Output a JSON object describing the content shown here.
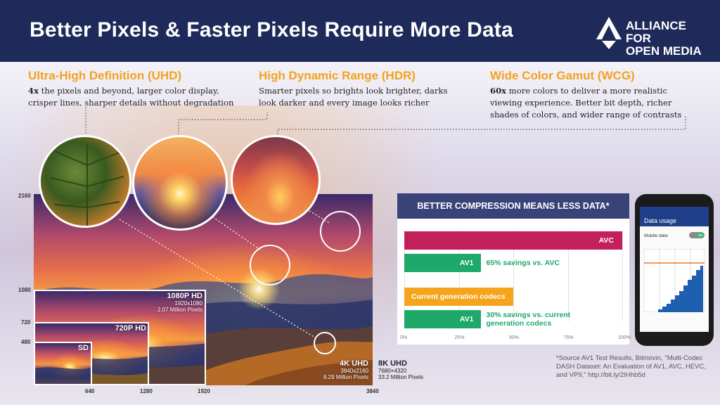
{
  "header": {
    "title": "Better Pixels & Faster Pixels Require More Data",
    "logo_line1": "ALLIANCE FOR",
    "logo_line2": "OPEN MEDIA"
  },
  "features": [
    {
      "title": "Ultra-High Definition (UHD)",
      "desc_bold": "4x",
      "desc": " the pixels and beyond, larger color display, crisper lines, sharper details without degradation"
    },
    {
      "title": "High Dynamic Range (HDR)",
      "desc_bold": "",
      "desc": "Smarter pixels so brights look brighter, darks look darker and every image looks richer"
    },
    {
      "title": "Wide Color Gamut (WCG)",
      "desc_bold": "60x",
      "desc": " more colors to deliver a more realistic viewing experience. Better bit depth, richer shades of colors, and wider range of contrasts"
    }
  ],
  "resolution": {
    "y_labels": [
      "2160",
      "1080",
      "720",
      "480"
    ],
    "x_labels": [
      "640",
      "1280",
      "1920",
      "3840"
    ],
    "boxes": [
      {
        "name": "SD",
        "dims": "",
        "pixels": ""
      },
      {
        "name": "720P HD",
        "dims": "",
        "pixels": ""
      },
      {
        "name": "1080P HD",
        "dims": "1920x1080",
        "pixels": "2.07 Million Pixels"
      },
      {
        "name": "4K UHD",
        "dims": "3840x2160",
        "pixels": "8.29 Million Pixels"
      },
      {
        "name": "8K UHD",
        "dims": "7680×4320",
        "pixels": "33.2 Million Pixels"
      }
    ]
  },
  "chart_data": {
    "type": "bar",
    "title": "BETTER COMPRESSION MEANS LESS DATA*",
    "bars": [
      {
        "label": "AVC",
        "value": 100,
        "color": "#c21f5b",
        "note": ""
      },
      {
        "label": "AV1",
        "value": 35,
        "color": "#1ea86a",
        "note": "65% savings vs. AVC"
      },
      {
        "label": "Current generation codecs",
        "value": 50,
        "color": "#f5a41c",
        "note": ""
      },
      {
        "label": "AV1",
        "value": 35,
        "color": "#1ea86a",
        "note": "30% savings vs. current generation codecs"
      }
    ],
    "x_ticks": [
      "0%",
      "25%",
      "50%",
      "75%",
      "100%"
    ],
    "xlim": [
      0,
      100
    ]
  },
  "phone": {
    "title": "Data usage",
    "row_label": "Mobile data",
    "toggle": "ON"
  },
  "source": "*Source AV1 Test Results, Bitmovin, \"Multi-Codec DASH Dataset: An Evaluation of AV1, AVC, HEVC, and VP9,\" http://bit.ly/2IHhb5d",
  "colors": {
    "header": "#1e2a5a",
    "accent": "#f3a21c"
  }
}
